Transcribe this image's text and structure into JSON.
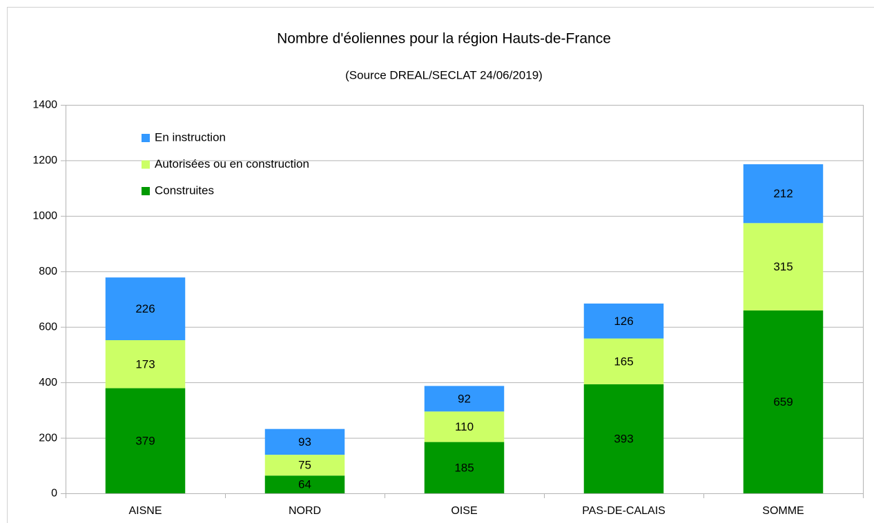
{
  "chart_data": {
    "type": "stacked_bar",
    "title": "Nombre d'éoliennes pour la région Hauts-de-France",
    "subtitle": "(Source DREAL/SECLAT 24/06/2019)",
    "categories": [
      "AISNE",
      "NORD",
      "OISE",
      "PAS-DE-CALAIS",
      "SOMME"
    ],
    "series": [
      {
        "name": "Construites",
        "color": "#009900",
        "values": [
          379,
          64,
          185,
          393,
          659
        ]
      },
      {
        "name": "Autorisées ou en construction",
        "color": "#ccff66",
        "values": [
          173,
          75,
          110,
          165,
          315
        ]
      },
      {
        "name": "En instruction",
        "color": "#3399ff",
        "values": [
          226,
          93,
          92,
          126,
          212
        ]
      }
    ],
    "ylim": [
      0,
      1400
    ],
    "yticks": [
      0,
      200,
      400,
      600,
      800,
      1000,
      1200,
      1400
    ],
    "grid": true,
    "legend": "top-left"
  }
}
